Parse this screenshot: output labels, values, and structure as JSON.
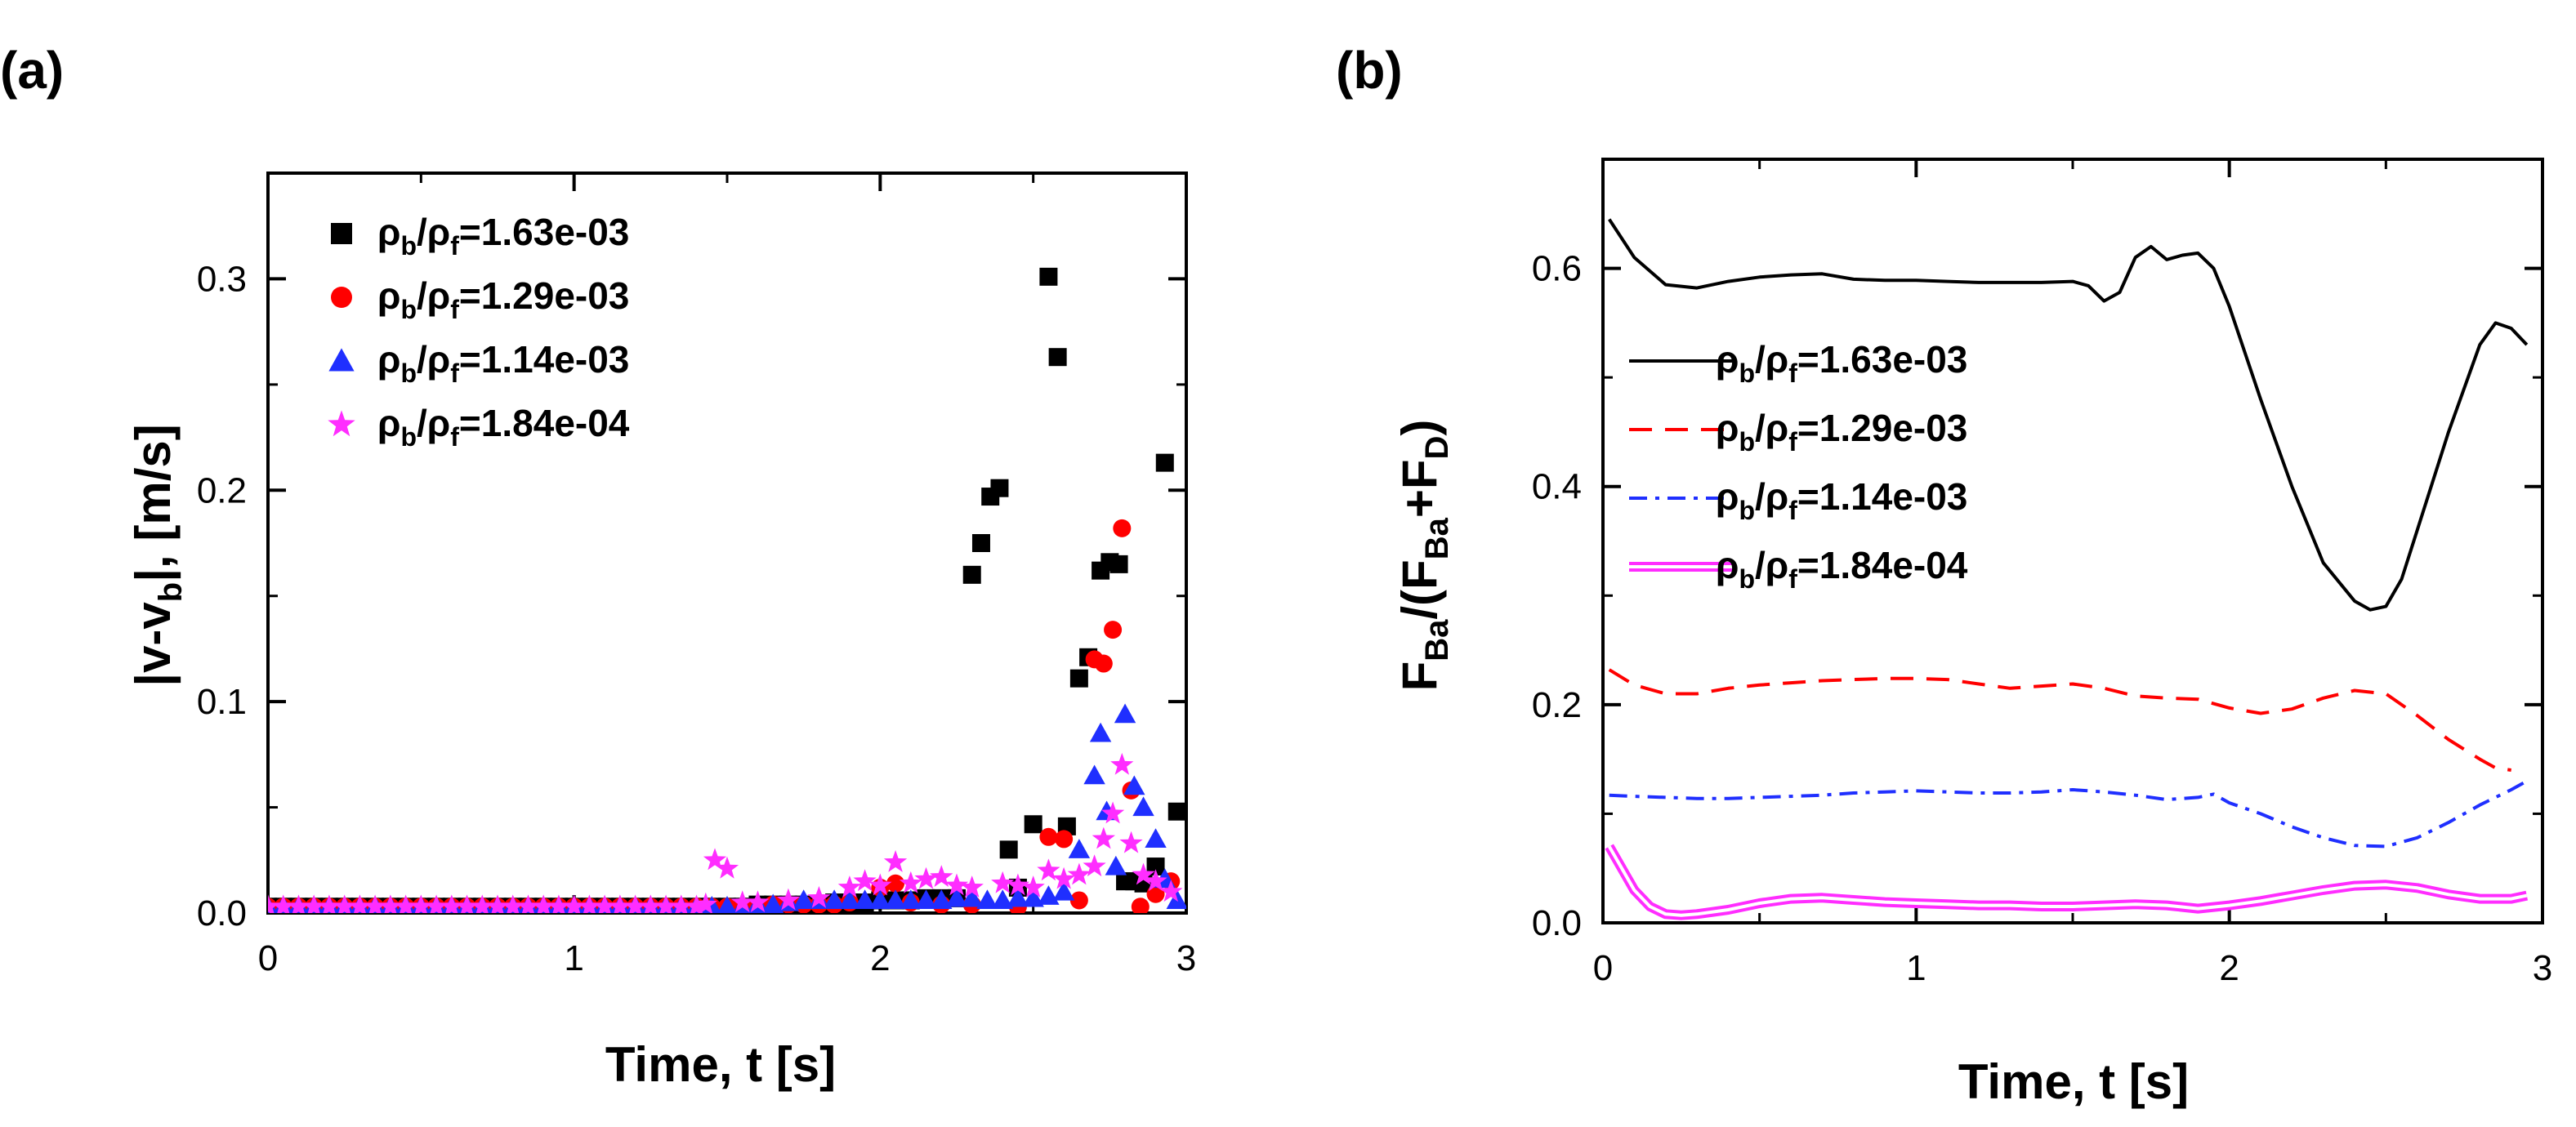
{
  "chart_data": [
    {
      "panel": "(a)",
      "type": "scatter",
      "xlabel": "Time, t [s]",
      "ylabel_main": "|v-v",
      "ylabel_sub": "b",
      "ylabel_tail": "|, [m/s]",
      "xlim": [
        0,
        3
      ],
      "ylim": [
        0,
        0.35
      ],
      "xticks": [
        0,
        1,
        2,
        3
      ],
      "xtick_labels": [
        "0",
        "1",
        "2",
        "3"
      ],
      "yticks": [
        0.0,
        0.1,
        0.2,
        0.3
      ],
      "ytick_labels": [
        "0.0",
        "0.1",
        "0.2",
        "0.3"
      ],
      "legend_position": "top-left",
      "series": [
        {
          "name": "ρb/ρf=1.63e-03",
          "label_a": "ρ",
          "sub_a": "b",
          "label_b": "/ρ",
          "sub_b": "f",
          "label_c": "=1.63e-03",
          "marker": "square",
          "color": "#000000",
          "x": [
            0.0,
            0.05,
            0.1,
            0.15,
            0.2,
            0.25,
            0.3,
            0.35,
            0.4,
            0.45,
            0.5,
            0.55,
            0.6,
            0.65,
            0.7,
            0.75,
            0.8,
            0.85,
            0.9,
            0.95,
            1.0,
            1.05,
            1.1,
            1.15,
            1.2,
            1.25,
            1.3,
            1.35,
            1.4,
            1.45,
            1.5,
            1.55,
            1.6,
            1.65,
            1.7,
            1.75,
            1.8,
            1.85,
            1.9,
            1.95,
            2.0,
            2.05,
            2.1,
            2.15,
            2.2,
            2.25,
            2.3,
            2.33,
            2.36,
            2.39,
            2.42,
            2.45,
            2.5,
            2.55,
            2.58,
            2.61,
            2.65,
            2.68,
            2.72,
            2.75,
            2.78,
            2.8,
            2.83,
            2.86,
            2.9,
            2.93,
            2.97
          ],
          "y": [
            0.003,
            0.003,
            0.003,
            0.003,
            0.003,
            0.003,
            0.003,
            0.003,
            0.003,
            0.003,
            0.003,
            0.003,
            0.003,
            0.003,
            0.003,
            0.003,
            0.003,
            0.003,
            0.003,
            0.003,
            0.003,
            0.003,
            0.003,
            0.003,
            0.003,
            0.003,
            0.003,
            0.003,
            0.003,
            0.003,
            0.003,
            0.003,
            0.004,
            0.004,
            0.004,
            0.004,
            0.004,
            0.005,
            0.005,
            0.005,
            0.006,
            0.006,
            0.006,
            0.007,
            0.007,
            0.007,
            0.16,
            0.175,
            0.197,
            0.201,
            0.03,
            0.012,
            0.042,
            0.301,
            0.263,
            0.041,
            0.111,
            0.121,
            0.162,
            0.166,
            0.165,
            0.015,
            0.015,
            0.014,
            0.022,
            0.213,
            0.048
          ]
        },
        {
          "name": "ρb/ρf=1.29e-03",
          "label_a": "ρ",
          "sub_a": "b",
          "label_b": "/ρ",
          "sub_b": "f",
          "label_c": "=1.29e-03",
          "marker": "circle",
          "color": "#ff0000",
          "x": [
            0.0,
            0.05,
            0.1,
            0.15,
            0.2,
            0.25,
            0.3,
            0.35,
            0.4,
            0.45,
            0.5,
            0.55,
            0.6,
            0.65,
            0.7,
            0.75,
            0.8,
            0.85,
            0.9,
            0.95,
            1.0,
            1.05,
            1.1,
            1.15,
            1.2,
            1.25,
            1.3,
            1.35,
            1.4,
            1.45,
            1.5,
            1.55,
            1.6,
            1.65,
            1.7,
            1.75,
            1.8,
            1.85,
            1.9,
            2.0,
            2.05,
            2.1,
            2.2,
            2.3,
            2.45,
            2.55,
            2.6,
            2.65,
            2.7,
            2.73,
            2.76,
            2.79,
            2.82,
            2.85,
            2.9,
            2.95
          ],
          "y": [
            0.003,
            0.003,
            0.003,
            0.003,
            0.003,
            0.003,
            0.003,
            0.003,
            0.003,
            0.003,
            0.003,
            0.003,
            0.003,
            0.003,
            0.003,
            0.003,
            0.003,
            0.003,
            0.003,
            0.003,
            0.003,
            0.003,
            0.003,
            0.003,
            0.003,
            0.003,
            0.003,
            0.003,
            0.003,
            0.003,
            0.003,
            0.003,
            0.003,
            0.004,
            0.004,
            0.004,
            0.004,
            0.004,
            0.005,
            0.012,
            0.014,
            0.005,
            0.004,
            0.004,
            0.003,
            0.036,
            0.035,
            0.006,
            0.12,
            0.118,
            0.134,
            0.182,
            0.058,
            0.003,
            0.009,
            0.015
          ]
        },
        {
          "name": "ρb/ρf=1.14e-03",
          "label_a": "ρ",
          "sub_a": "b",
          "label_b": "/ρ",
          "sub_b": "f",
          "label_c": "=1.14e-03",
          "marker": "triangle",
          "color": "#1f2fff",
          "x": [
            0.0,
            0.05,
            0.1,
            0.15,
            0.2,
            0.25,
            0.3,
            0.35,
            0.4,
            0.45,
            0.5,
            0.55,
            0.6,
            0.65,
            0.7,
            0.75,
            0.8,
            0.85,
            0.9,
            0.95,
            1.0,
            1.05,
            1.1,
            1.15,
            1.2,
            1.25,
            1.3,
            1.35,
            1.4,
            1.45,
            1.5,
            1.55,
            1.6,
            1.65,
            1.7,
            1.75,
            1.8,
            1.85,
            1.9,
            1.95,
            2.0,
            2.05,
            2.1,
            2.15,
            2.2,
            2.25,
            2.3,
            2.35,
            2.4,
            2.45,
            2.5,
            2.55,
            2.6,
            2.65,
            2.7,
            2.72,
            2.74,
            2.77,
            2.8,
            2.83,
            2.86,
            2.9,
            2.93,
            2.97
          ],
          "y": [
            0.003,
            0.003,
            0.003,
            0.003,
            0.003,
            0.003,
            0.003,
            0.003,
            0.003,
            0.003,
            0.003,
            0.003,
            0.003,
            0.003,
            0.003,
            0.003,
            0.003,
            0.003,
            0.003,
            0.003,
            0.003,
            0.003,
            0.003,
            0.003,
            0.003,
            0.003,
            0.003,
            0.003,
            0.003,
            0.003,
            0.003,
            0.003,
            0.004,
            0.004,
            0.005,
            0.006,
            0.006,
            0.006,
            0.006,
            0.006,
            0.006,
            0.006,
            0.006,
            0.006,
            0.006,
            0.007,
            0.007,
            0.006,
            0.006,
            0.007,
            0.007,
            0.008,
            0.01,
            0.03,
            0.065,
            0.085,
            0.048,
            0.022,
            0.094,
            0.06,
            0.05,
            0.035,
            0.016,
            0.006
          ]
        },
        {
          "name": "ρb/ρf=1.84e-04",
          "label_a": "ρ",
          "sub_a": "b",
          "label_b": "/ρ",
          "sub_b": "f",
          "label_c": "=1.84e-04",
          "marker": "star",
          "color": "#ff2dff",
          "x": [
            0.0,
            0.05,
            0.1,
            0.15,
            0.2,
            0.25,
            0.3,
            0.35,
            0.4,
            0.45,
            0.5,
            0.55,
            0.6,
            0.65,
            0.7,
            0.75,
            0.8,
            0.85,
            0.9,
            0.95,
            1.0,
            1.05,
            1.1,
            1.15,
            1.2,
            1.25,
            1.3,
            1.35,
            1.4,
            1.43,
            1.46,
            1.5,
            1.55,
            1.6,
            1.7,
            1.8,
            1.9,
            1.95,
            2.0,
            2.05,
            2.1,
            2.15,
            2.2,
            2.25,
            2.3,
            2.4,
            2.45,
            2.5,
            2.55,
            2.6,
            2.65,
            2.7,
            2.73,
            2.76,
            2.79,
            2.82,
            2.86,
            2.9,
            2.95
          ],
          "y": [
            0.003,
            0.003,
            0.003,
            0.003,
            0.003,
            0.003,
            0.003,
            0.003,
            0.003,
            0.003,
            0.003,
            0.003,
            0.003,
            0.003,
            0.003,
            0.003,
            0.003,
            0.003,
            0.003,
            0.003,
            0.003,
            0.003,
            0.003,
            0.003,
            0.003,
            0.003,
            0.003,
            0.003,
            0.003,
            0.004,
            0.025,
            0.021,
            0.005,
            0.005,
            0.006,
            0.007,
            0.012,
            0.015,
            0.013,
            0.024,
            0.014,
            0.016,
            0.017,
            0.013,
            0.012,
            0.014,
            0.013,
            0.012,
            0.02,
            0.016,
            0.018,
            0.022,
            0.035,
            0.047,
            0.07,
            0.033,
            0.018,
            0.015,
            0.01
          ]
        }
      ]
    },
    {
      "panel": "(b)",
      "type": "line",
      "xlabel": "Time, t [s]",
      "ylabel_1": "F",
      "ylabel_1sub": "Ba",
      "ylabel_2": "/(F",
      "ylabel_2sub": "Ba",
      "ylabel_3": "+F",
      "ylabel_3sub": "D",
      "ylabel_4": ")",
      "xlim": [
        0,
        3
      ],
      "ylim": [
        0,
        0.7
      ],
      "xticks": [
        0,
        1,
        2,
        3
      ],
      "xtick_labels": [
        "0",
        "1",
        "2",
        "3"
      ],
      "yticks": [
        0.0,
        0.2,
        0.4,
        0.6
      ],
      "ytick_labels": [
        "0.0",
        "0.2",
        "0.4",
        "0.6"
      ],
      "legend_position": "center-left",
      "series": [
        {
          "name": "ρb/ρf=1.63e-03",
          "label_a": "ρ",
          "sub_a": "b",
          "label_b": "/ρ",
          "sub_b": "f",
          "label_c": "=1.63e-03",
          "style": "solid",
          "color": "#000000",
          "x": [
            0.02,
            0.1,
            0.2,
            0.3,
            0.4,
            0.5,
            0.6,
            0.7,
            0.8,
            0.9,
            1.0,
            1.1,
            1.2,
            1.3,
            1.4,
            1.5,
            1.55,
            1.6,
            1.65,
            1.7,
            1.75,
            1.8,
            1.85,
            1.9,
            1.95,
            2.0,
            2.1,
            2.2,
            2.3,
            2.4,
            2.45,
            2.5,
            2.55,
            2.6,
            2.7,
            2.8,
            2.85,
            2.9,
            2.95
          ],
          "y": [
            0.645,
            0.61,
            0.585,
            0.582,
            0.588,
            0.592,
            0.594,
            0.595,
            0.59,
            0.589,
            0.589,
            0.588,
            0.587,
            0.587,
            0.587,
            0.588,
            0.584,
            0.57,
            0.578,
            0.61,
            0.62,
            0.608,
            0.612,
            0.614,
            0.6,
            0.565,
            0.48,
            0.4,
            0.33,
            0.295,
            0.287,
            0.29,
            0.315,
            0.36,
            0.45,
            0.53,
            0.55,
            0.545,
            0.53
          ]
        },
        {
          "name": "ρb/ρf=1.29e-03",
          "label_a": "ρ",
          "sub_a": "b",
          "label_b": "/ρ",
          "sub_b": "f",
          "label_c": "=1.29e-03",
          "style": "dashed",
          "color": "#ff0000",
          "x": [
            0.02,
            0.1,
            0.2,
            0.3,
            0.4,
            0.5,
            0.6,
            0.7,
            0.8,
            0.9,
            1.0,
            1.1,
            1.2,
            1.3,
            1.4,
            1.5,
            1.6,
            1.7,
            1.8,
            1.9,
            2.0,
            2.1,
            2.2,
            2.3,
            2.4,
            2.5,
            2.6,
            2.7,
            2.8,
            2.85,
            2.9
          ],
          "y": [
            0.232,
            0.218,
            0.21,
            0.21,
            0.215,
            0.218,
            0.22,
            0.222,
            0.223,
            0.224,
            0.224,
            0.223,
            0.219,
            0.215,
            0.217,
            0.219,
            0.215,
            0.208,
            0.206,
            0.205,
            0.197,
            0.192,
            0.196,
            0.206,
            0.213,
            0.21,
            0.19,
            0.168,
            0.15,
            0.142,
            0.14
          ]
        },
        {
          "name": "ρb/ρf=1.14e-03",
          "label_a": "ρ",
          "sub_a": "b",
          "label_b": "/ρ",
          "sub_b": "f",
          "label_c": "=1.14e-03",
          "style": "dash-dot",
          "color": "#1f2fff",
          "x": [
            0.02,
            0.1,
            0.2,
            0.3,
            0.4,
            0.5,
            0.6,
            0.7,
            0.8,
            0.9,
            1.0,
            1.1,
            1.2,
            1.3,
            1.4,
            1.5,
            1.6,
            1.7,
            1.8,
            1.9,
            1.95,
            2.0,
            2.1,
            2.2,
            2.3,
            2.4,
            2.5,
            2.6,
            2.7,
            2.8,
            2.9,
            2.95
          ],
          "y": [
            0.117,
            0.116,
            0.115,
            0.114,
            0.114,
            0.115,
            0.116,
            0.117,
            0.119,
            0.12,
            0.121,
            0.12,
            0.119,
            0.119,
            0.12,
            0.122,
            0.12,
            0.117,
            0.113,
            0.115,
            0.118,
            0.11,
            0.1,
            0.088,
            0.078,
            0.071,
            0.07,
            0.078,
            0.092,
            0.108,
            0.122,
            0.13
          ]
        },
        {
          "name": "ρb/ρf=1.84e-04",
          "label_a": "ρ",
          "sub_a": "b",
          "label_b": "/ρ",
          "sub_b": "f",
          "label_c": "=1.84e-04",
          "style": "double",
          "color": "#ff2dff",
          "x": [
            0.02,
            0.05,
            0.1,
            0.15,
            0.2,
            0.25,
            0.3,
            0.4,
            0.5,
            0.6,
            0.7,
            0.8,
            0.9,
            1.0,
            1.1,
            1.2,
            1.3,
            1.4,
            1.5,
            1.6,
            1.7,
            1.8,
            1.9,
            2.0,
            2.1,
            2.2,
            2.3,
            2.4,
            2.5,
            2.6,
            2.7,
            2.8,
            2.9,
            2.95
          ],
          "y": [
            0.07,
            0.055,
            0.03,
            0.015,
            0.008,
            0.007,
            0.008,
            0.012,
            0.018,
            0.022,
            0.023,
            0.021,
            0.019,
            0.018,
            0.017,
            0.016,
            0.016,
            0.015,
            0.015,
            0.016,
            0.017,
            0.016,
            0.013,
            0.016,
            0.02,
            0.025,
            0.03,
            0.034,
            0.035,
            0.032,
            0.026,
            0.022,
            0.022,
            0.025
          ]
        }
      ]
    }
  ]
}
